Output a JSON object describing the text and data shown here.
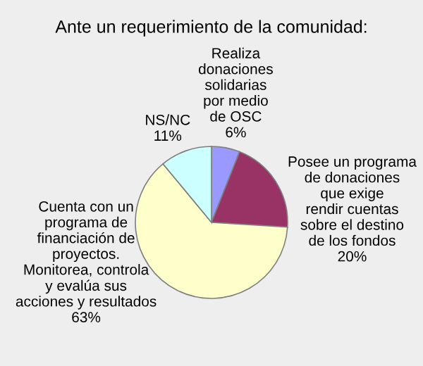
{
  "chart_data": {
    "type": "pie",
    "title": "Ante un requerimiento de la comunidad:",
    "categories": [
      "Realiza\ndonaciones\nsolidarias\npor medio\nde OSC",
      "Posee un programa\nde donaciones\nque exige\nrendir cuentas\nsobre el destino\nde los fondos",
      "Cuenta con un\nprograma de\nfinanciación de\nproyectos.\nMonitorea, controla\ny evalúa sus\nacciones y resultados",
      "NS/NC"
    ],
    "values": [
      6,
      20,
      63,
      11
    ],
    "colors": [
      "#9999ff",
      "#993366",
      "#ffffcc",
      "#ccffff"
    ],
    "value_labels": [
      "6%",
      "20%",
      "63%",
      "11%"
    ]
  }
}
